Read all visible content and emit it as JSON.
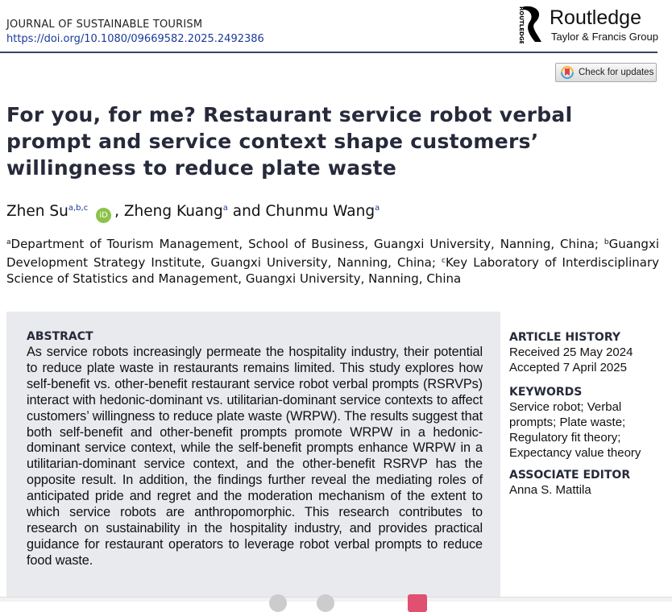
{
  "journal": {
    "name": "JOURNAL OF SUSTAINABLE TOURISM",
    "doi": "https://doi.org/10.1080/09669582.2025.2492386"
  },
  "publisher": {
    "name": "Routledge",
    "group": "Taylor & Francis Group",
    "mark_text": "ROUTLEDGE"
  },
  "check_updates": {
    "label": "Check for updates",
    "icon": "crossmark-icon"
  },
  "title": "For you, for me? Restaurant service robot verbal prompt and service context shape customers’ willingness to reduce plate waste",
  "authors": [
    {
      "name": "Zhen Su",
      "sup": "a,b,c",
      "orcid": "iD"
    },
    {
      "name": "Zheng Kuang",
      "sup": "a"
    },
    {
      "name": "Chunmu Wang",
      "sup": "a"
    }
  ],
  "author_sep": {
    "comma": ", ",
    "and": " and "
  },
  "affiliations": [
    {
      "sup": "a",
      "text": "Department of Tourism Management, School of Business, Guangxi University, Nanning, China; "
    },
    {
      "sup": "b",
      "text": "Guangxi Development Strategy Institute, Guangxi University, Nanning, China; "
    },
    {
      "sup": "c",
      "text": "Key Laboratory of Interdisciplinary Science of Statistics and Management, Guangxi University, Nanning, China"
    }
  ],
  "abstract": {
    "heading": "ABSTRACT",
    "text": "As service robots increasingly permeate the hospitality industry, their potential to reduce plate waste in restaurants remains limited. This study explores how self-benefit vs. other-benefit restaurant service robot verbal prompts (RSRVPs) interact with hedonic-dominant vs. utilitarian-dominant service contexts to affect customers’ willingness to reduce plate waste (WRPW). The results suggest that both self-benefit and other-benefit prompts promote WRPW in a hedonic-dominant service context, while the self-benefit prompts enhance WRPW in a utilitarian-dominant service context, and the other-benefit RSRVP has the opposite result. In addition, the findings further reveal the mediating roles of anticipated pride and regret and the moderation mechanism of the extent to which service robots are anthropomorphic. This research contributes to research on sustainability in the hospitality industry, and provides practical guidance for restaurant operators to leverage robot verbal prompts to reduce food waste."
  },
  "sidebar": {
    "history": {
      "heading": "ARTICLE HISTORY",
      "received": "Received 25 May 2024",
      "accepted": "Accepted 7 April 2025"
    },
    "keywords": {
      "heading": "KEYWORDS",
      "text": "Service robot; Verbal prompts; Plate waste; Regulatory fit theory; Expectancy value theory"
    },
    "editor": {
      "heading": "ASSOCIATE EDITOR",
      "name": "Anna S. Mattila"
    }
  }
}
